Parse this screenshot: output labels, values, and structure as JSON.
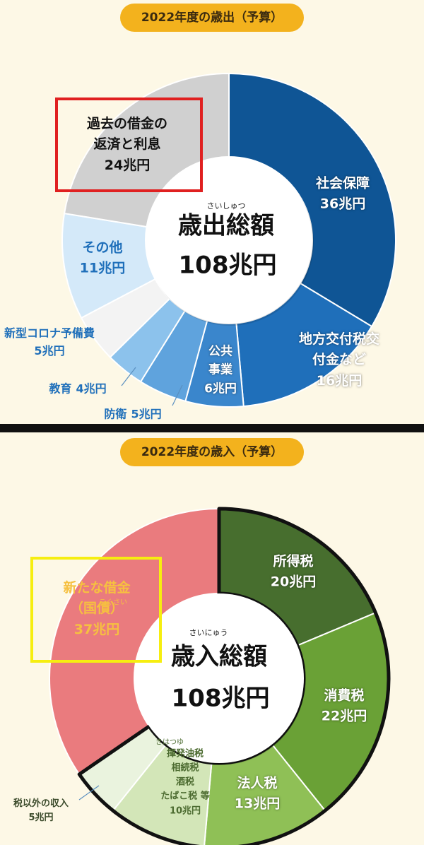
{
  "chart_data": [
    {
      "type": "pie",
      "title": "2022年度の歳出（予算）",
      "center_furigana": "さいしゅつ",
      "center_title": "歳出総額",
      "total_label": "108兆円",
      "categories": [
        "社会保障",
        "地方交付税交付金など",
        "公共\n事業",
        "防衛",
        "教育",
        "新型コロナ予備費",
        "その他",
        "過去の借金の\n返済と利息"
      ],
      "values": [
        36,
        16,
        6,
        5,
        4,
        5,
        11,
        24
      ],
      "value_labels": [
        "36兆円",
        "16兆円",
        "6兆円",
        "5兆円",
        "4兆円",
        "5兆円",
        "11兆円",
        "24兆円"
      ],
      "colors": [
        "#0f5595",
        "#1f6fba",
        "#3a86cc",
        "#5fa3dd",
        "#8cc2ec",
        "#f3f3f3",
        "#d4e9f9",
        "#d0d0d0"
      ]
    },
    {
      "type": "pie",
      "title": "2022年度の歳入（予算）",
      "center_furigana": "さいにゅう",
      "center_title": "歳入総額",
      "total_label": "108兆円",
      "categories": [
        "所得税",
        "消費税",
        "法人税",
        "揮発油税\n相続税\n酒税\nたばこ税 等",
        "税以外の収入",
        "新たな借金\n（国債）"
      ],
      "values": [
        20,
        22,
        13,
        10,
        5,
        37
      ],
      "value_labels": [
        "20兆円",
        "22兆円",
        "13兆円",
        "10兆円",
        "5兆円",
        "37兆円"
      ],
      "furigana": [
        null,
        null,
        null,
        "きはつゆ",
        null,
        "こくさい"
      ],
      "colors": [
        "#476e2e",
        "#6aa136",
        "#8fc056",
        "#d3e6b8",
        "#eaf3de",
        "#ea7b7e"
      ]
    }
  ]
}
